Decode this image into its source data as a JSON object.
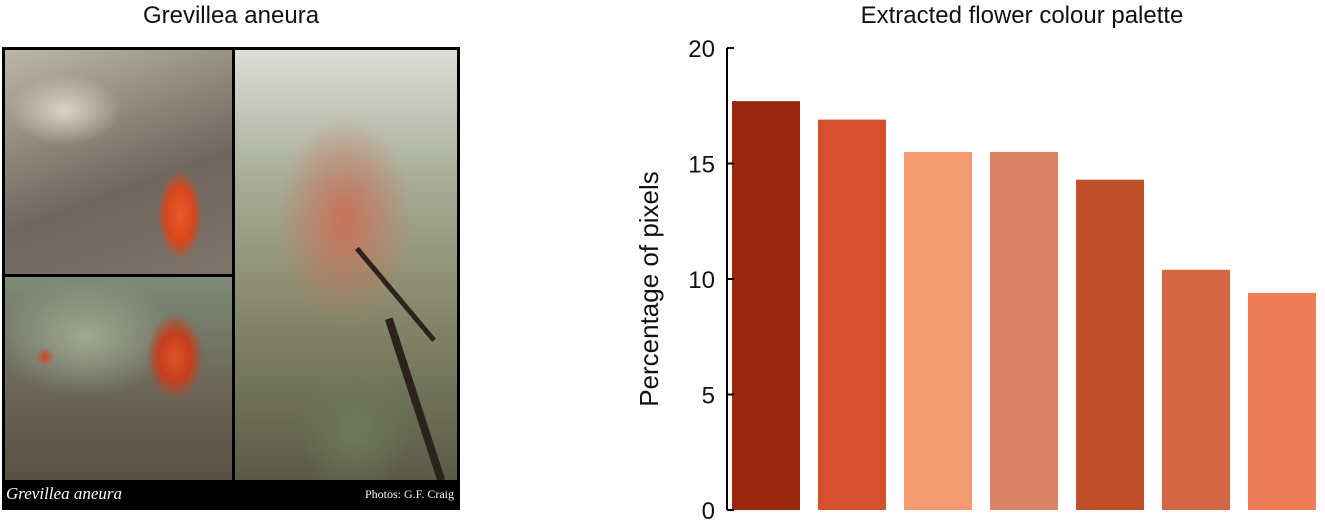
{
  "photo_panel": {
    "title": "Grevillea aneura",
    "caption": "Grevillea aneura",
    "credit": "Photos: G.F. Craig"
  },
  "chart_data": {
    "type": "bar",
    "title": "Extracted flower colour palette",
    "xlabel": "",
    "ylabel": "Percentage of pixels",
    "ylim": [
      0,
      20
    ],
    "yticks": [
      0,
      5,
      10,
      15,
      20
    ],
    "grid": false,
    "values": [
      17.7,
      16.9,
      15.5,
      15.5,
      14.3,
      10.4,
      9.4
    ],
    "colors": [
      "#99260e",
      "#d4502e",
      "#f39a72",
      "#db8468",
      "#c0502c",
      "#d36444",
      "#ee7c56"
    ]
  }
}
